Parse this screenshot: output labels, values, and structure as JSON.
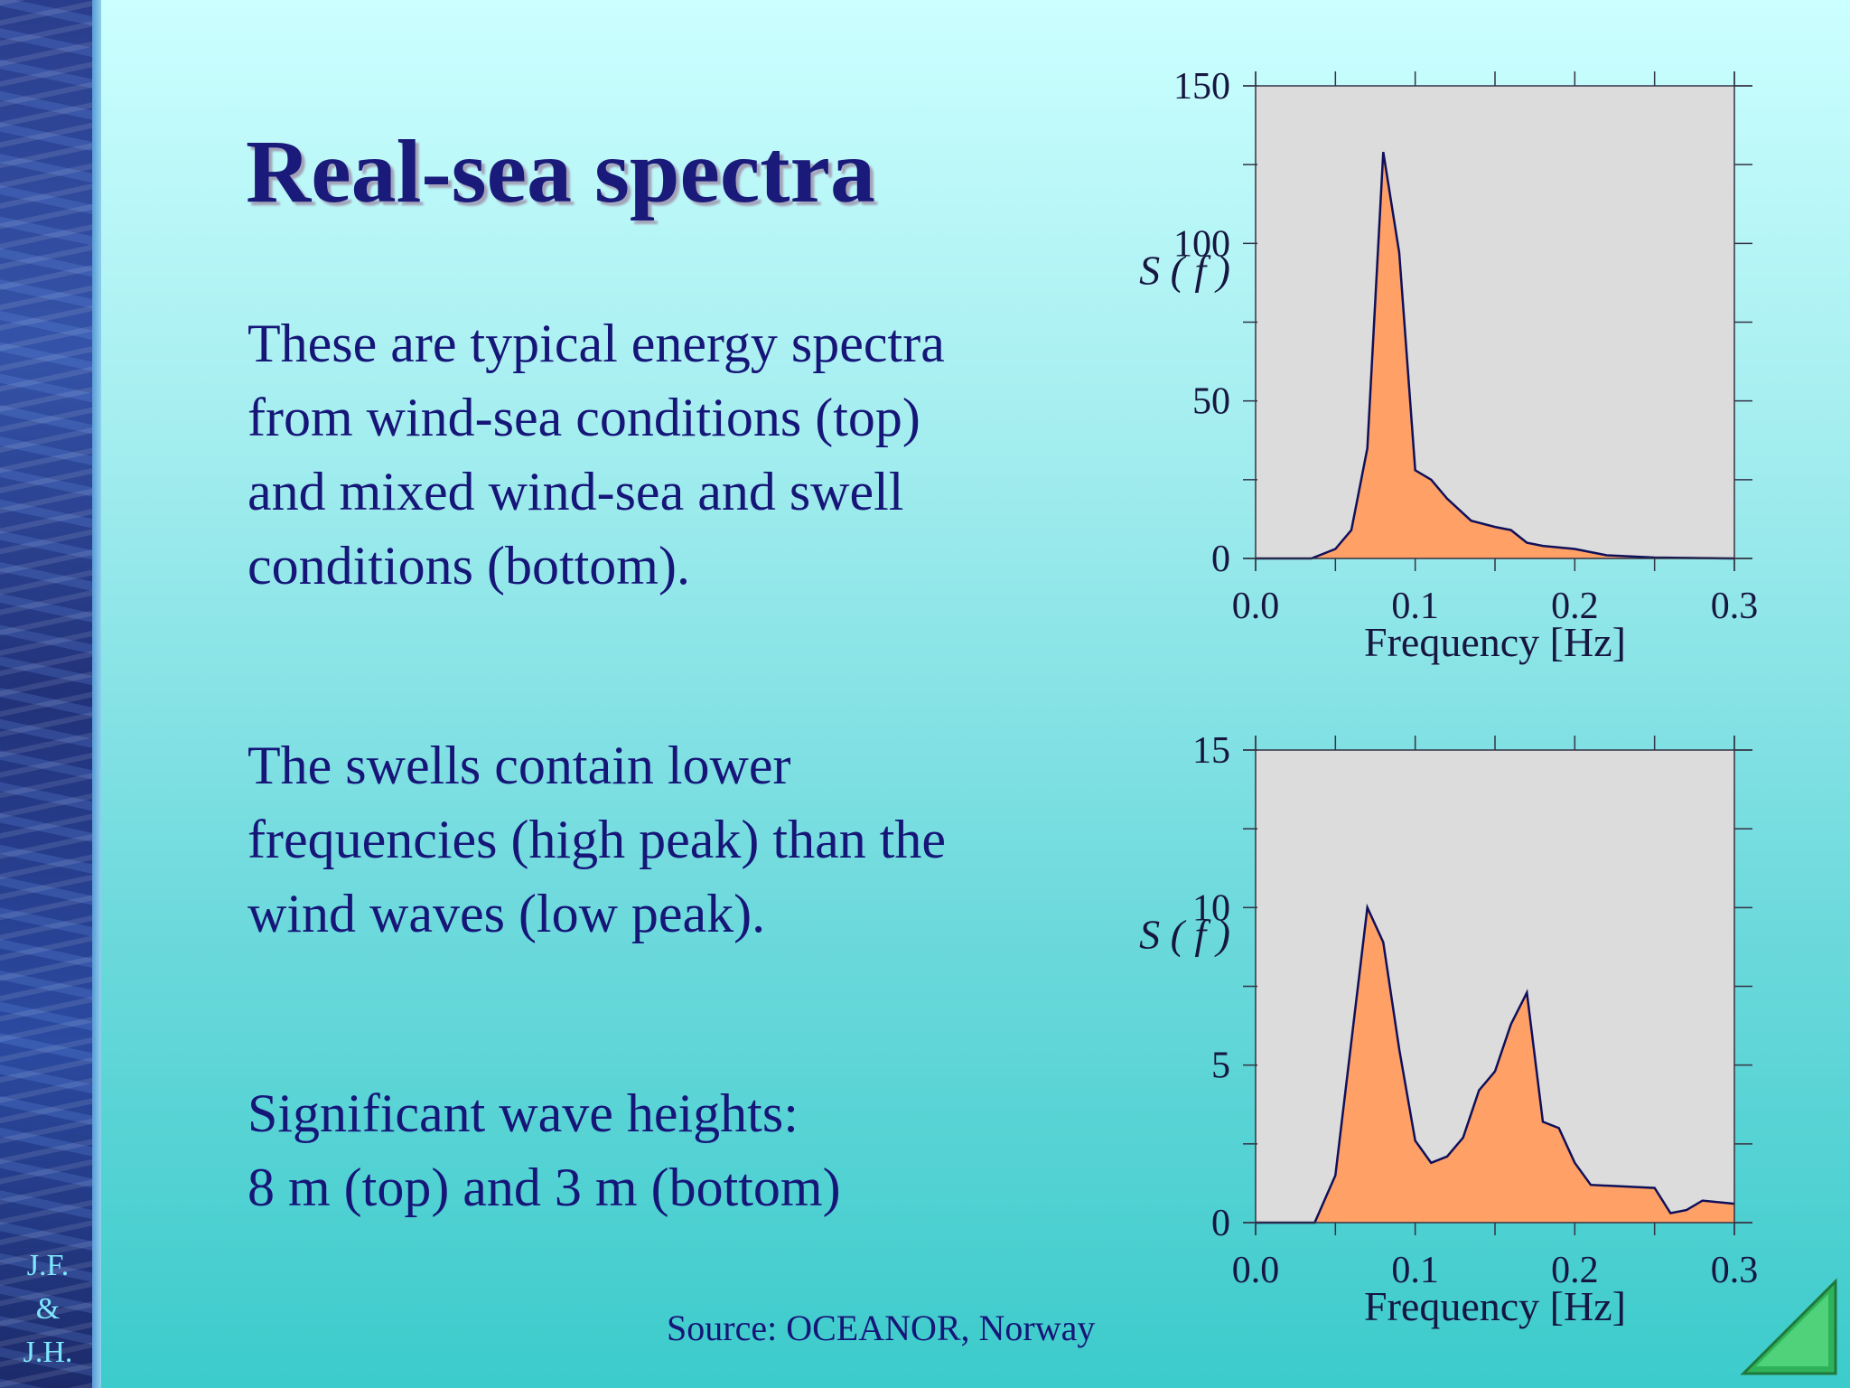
{
  "slide": {
    "title": "Real-sea spectra",
    "paragraphs": [
      "These are typical energy spectra from wind-sea conditions (top) and mixed wind-sea and swell conditions (bottom).",
      "The swells contain lower frequencies (high peak) than the wind waves (low peak).",
      "Significant wave heights:\n8 m (top) and 3 m (bottom)"
    ],
    "author_lines": [
      "J.F.",
      "&",
      "J.H."
    ],
    "source": "Source: OCEANOR, Norway"
  },
  "colors": {
    "title": "#1a1a7a",
    "text": "#161678",
    "plot_background": "#dcdcdc",
    "fill": "#ffa066",
    "outline": "#10105a"
  },
  "icons": [
    "next-slide-triangle-icon"
  ],
  "chart_data": [
    {
      "type": "area",
      "title": "",
      "xlabel": "Frequency [Hz]",
      "ylabel": "S ( f )",
      "xlim": [
        0,
        0.3
      ],
      "ylim": [
        0,
        150
      ],
      "x_ticks": [
        0.0,
        0.1,
        0.2,
        0.3
      ],
      "x_tick_labels": [
        "0.0",
        "0.1",
        "0.2",
        "0.3"
      ],
      "y_ticks": [
        0,
        50,
        100,
        150
      ],
      "y_tick_labels": [
        "0",
        "50",
        "100",
        "150"
      ],
      "grid": false,
      "x": [
        0.0,
        0.035,
        0.05,
        0.06,
        0.07,
        0.08,
        0.09,
        0.1,
        0.11,
        0.12,
        0.135,
        0.15,
        0.16,
        0.17,
        0.18,
        0.2,
        0.22,
        0.25,
        0.3
      ],
      "y": [
        0,
        0,
        3,
        9,
        35,
        129,
        97,
        28,
        25,
        19,
        12,
        10,
        9,
        5,
        4,
        3,
        1,
        0.3,
        0
      ]
    },
    {
      "type": "area",
      "title": "",
      "xlabel": "Frequency [Hz]",
      "ylabel": "S ( f )",
      "xlim": [
        0,
        0.3
      ],
      "ylim": [
        0,
        15
      ],
      "x_ticks": [
        0.0,
        0.1,
        0.2,
        0.3
      ],
      "x_tick_labels": [
        "0.0",
        "0.1",
        "0.2",
        "0.3"
      ],
      "y_ticks": [
        0,
        5,
        10,
        15
      ],
      "y_tick_labels": [
        "0",
        "5",
        "10",
        "15"
      ],
      "grid": false,
      "x": [
        0.0,
        0.037,
        0.05,
        0.07,
        0.08,
        0.09,
        0.1,
        0.11,
        0.12,
        0.13,
        0.14,
        0.15,
        0.16,
        0.17,
        0.18,
        0.19,
        0.2,
        0.21,
        0.25,
        0.26,
        0.27,
        0.28,
        0.3
      ],
      "y": [
        0,
        0,
        1.5,
        10,
        8.9,
        5.5,
        2.6,
        1.9,
        2.1,
        2.7,
        4.2,
        4.8,
        6.3,
        7.3,
        3.2,
        3.0,
        1.9,
        1.2,
        1.1,
        0.3,
        0.4,
        0.7,
        0.6
      ]
    }
  ]
}
